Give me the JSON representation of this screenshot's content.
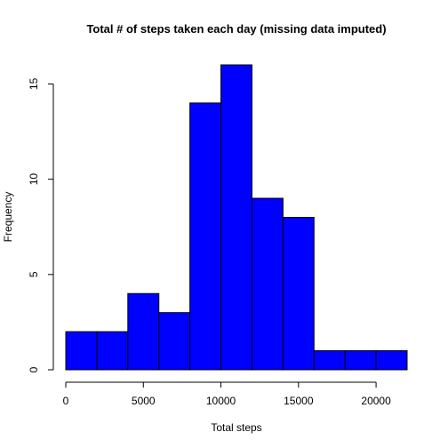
{
  "chart_data": {
    "type": "bar",
    "title": "Total # of steps taken each day (missing data imputed)",
    "xlabel": "Total steps",
    "ylabel": "Frequency",
    "bins": [
      {
        "x0": 0,
        "x1": 2000,
        "count": 2
      },
      {
        "x0": 2000,
        "x1": 4000,
        "count": 2
      },
      {
        "x0": 4000,
        "x1": 6000,
        "count": 4
      },
      {
        "x0": 6000,
        "x1": 8000,
        "count": 3
      },
      {
        "x0": 8000,
        "x1": 10000,
        "count": 14
      },
      {
        "x0": 10000,
        "x1": 12000,
        "count": 16
      },
      {
        "x0": 12000,
        "x1": 14000,
        "count": 9
      },
      {
        "x0": 14000,
        "x1": 16000,
        "count": 8
      },
      {
        "x0": 16000,
        "x1": 18000,
        "count": 1
      },
      {
        "x0": 18000,
        "x1": 20000,
        "count": 1
      },
      {
        "x0": 20000,
        "x1": 22000,
        "count": 1
      }
    ],
    "xlim": [
      0,
      22000
    ],
    "ylim": [
      0,
      16
    ],
    "xticks": [
      0,
      5000,
      10000,
      15000,
      20000
    ],
    "yticks": [
      0,
      5,
      10,
      15
    ],
    "grid": false,
    "legend": "none",
    "bar_color": "#0000ff",
    "edge_color": "#000000"
  }
}
